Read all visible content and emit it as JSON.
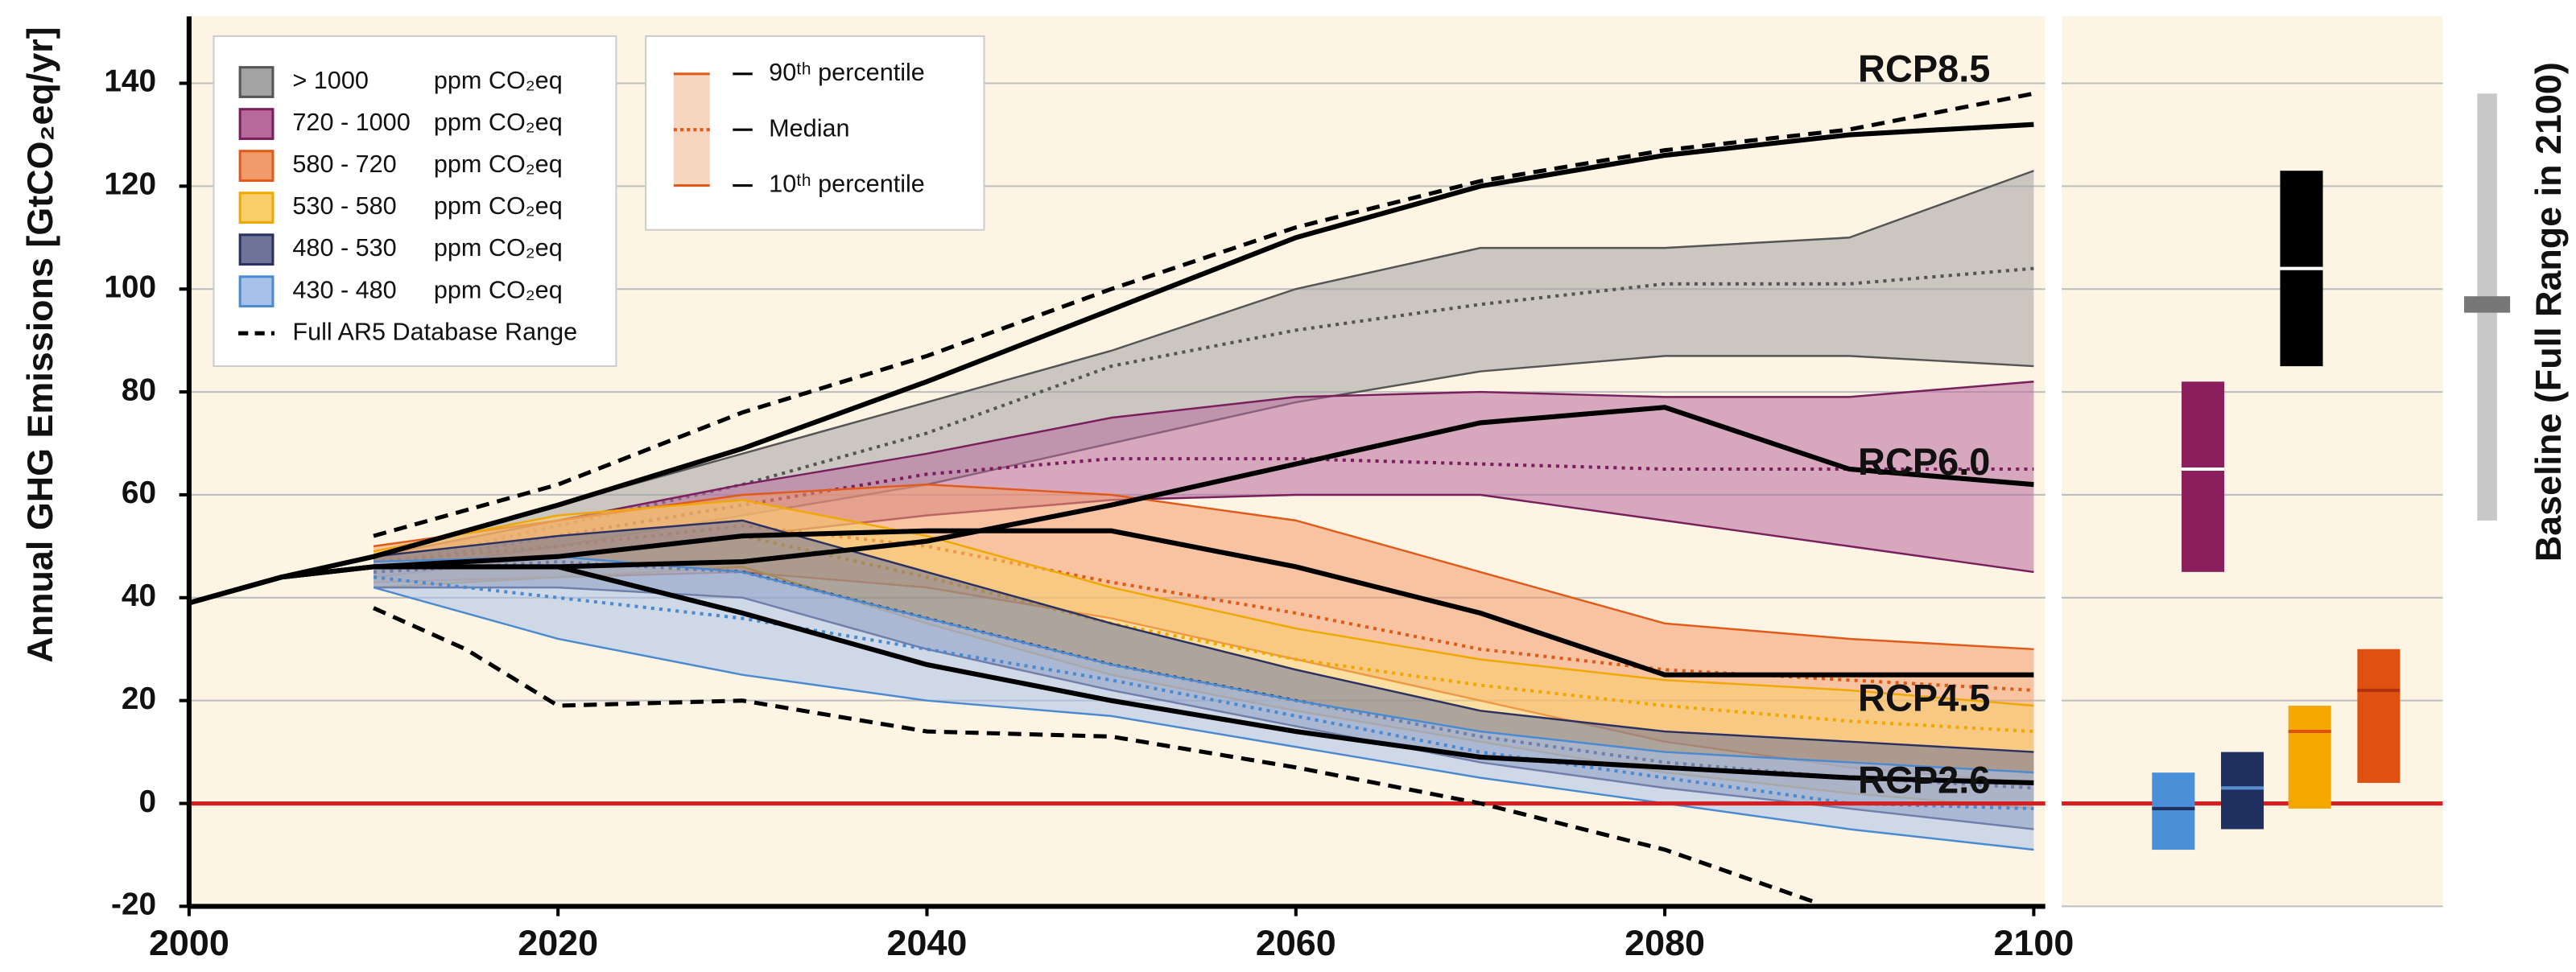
{
  "chart_data": {
    "type": "band",
    "y_label": "Annual GHG Emissions [GtCO₂eq/yr]",
    "xlim": [
      2000,
      2100
    ],
    "xticks": [
      2000,
      2020,
      2040,
      2060,
      2080,
      2100
    ],
    "ylim": [
      -20,
      153
    ],
    "yticks": [
      -20,
      0,
      20,
      40,
      60,
      80,
      100,
      120,
      140
    ],
    "grid": true,
    "zero_line": 0,
    "legend_unit": "ppm CO₂eq",
    "x": [
      2010,
      2020,
      2030,
      2040,
      2050,
      2060,
      2070,
      2080,
      2090,
      2100
    ],
    "series": [
      {
        "name": "> 1000",
        "color": "#a3a3a3",
        "edge": "#555555",
        "bar_color": "#000000",
        "p90": [
          48,
          58,
          68,
          78,
          88,
          100,
          108,
          108,
          110,
          123
        ],
        "median": [
          46,
          54,
          62,
          72,
          85,
          92,
          97,
          101,
          101,
          104
        ],
        "p10": [
          45,
          50,
          56,
          62,
          70,
          78,
          84,
          87,
          87,
          85
        ]
      },
      {
        "name": "720 - 1000",
        "color": "#b8699c",
        "edge": "#7a1f5e",
        "bar_color": "#8b1f5e",
        "p90": [
          48,
          55,
          62,
          68,
          75,
          79,
          80,
          79,
          79,
          82
        ],
        "median": [
          46,
          52,
          58,
          64,
          67,
          67,
          66,
          65,
          65,
          65
        ],
        "p10": [
          44,
          48,
          52,
          56,
          59,
          60,
          60,
          55,
          50,
          45
        ]
      },
      {
        "name": "580 - 720",
        "color": "#f29a6a",
        "edge": "#e05a1a",
        "bar_color": "#e05010",
        "p90": [
          50,
          55,
          60,
          62,
          60,
          55,
          45,
          35,
          32,
          30
        ],
        "median": [
          47,
          50,
          54,
          50,
          43,
          37,
          30,
          26,
          24,
          22
        ],
        "p10": [
          43,
          44,
          45,
          42,
          36,
          28,
          20,
          12,
          7,
          4
        ]
      },
      {
        "name": "530 - 580",
        "color": "#f9cd6a",
        "edge": "#f0a800",
        "bar_color": "#f5a800",
        "p90": [
          49,
          56,
          59,
          52,
          42,
          34,
          28,
          24,
          22,
          19
        ],
        "median": [
          45,
          48,
          52,
          44,
          35,
          28,
          23,
          19,
          16,
          14
        ],
        "p10": [
          42,
          44,
          46,
          35,
          25,
          18,
          12,
          6,
          2,
          -1
        ]
      },
      {
        "name": "480 - 530",
        "color": "#6e7399",
        "edge": "#2a3060",
        "bar_color": "#1f3060",
        "p90": [
          48,
          52,
          55,
          45,
          35,
          26,
          18,
          14,
          12,
          10
        ],
        "median": [
          45,
          47,
          45,
          36,
          27,
          20,
          13,
          8,
          5,
          3
        ],
        "p10": [
          42,
          42,
          40,
          30,
          22,
          15,
          8,
          3,
          -1,
          -5
        ]
      },
      {
        "name": "430 - 480",
        "color": "#a9c1e9",
        "edge": "#4a8ad0",
        "bar_color": "#4a90d9",
        "p90": [
          47,
          48,
          45,
          36,
          27,
          20,
          14,
          10,
          8,
          6
        ],
        "median": [
          44,
          40,
          36,
          30,
          24,
          17,
          10,
          5,
          0,
          -1
        ],
        "p10": [
          42,
          32,
          25,
          20,
          17,
          11,
          5,
          0,
          -5,
          -9
        ]
      }
    ],
    "percentile_labels": {
      "p90": "90ᵗʰ percentile",
      "median": "Median",
      "p10": "10ᵗʰ percentile"
    },
    "rcp": {
      "x": [
        2000,
        2005,
        2010,
        2020,
        2030,
        2040,
        2050,
        2060,
        2070,
        2080,
        2090,
        2100
      ],
      "series": [
        {
          "name": "RCP8.5",
          "values": [
            39,
            44,
            48,
            58,
            69,
            82,
            96,
            110,
            120,
            126,
            130,
            132
          ]
        },
        {
          "name": "RCP6.0",
          "values": [
            39,
            44,
            46,
            46,
            47,
            51,
            58,
            66,
            74,
            77,
            65,
            62
          ]
        },
        {
          "name": "RCP4.5",
          "values": [
            39,
            44,
            46,
            48,
            52,
            53,
            53,
            46,
            37,
            25,
            25,
            25
          ]
        },
        {
          "name": "RCP2.6",
          "values": [
            39,
            44,
            46,
            46,
            37,
            27,
            20,
            14,
            9,
            7,
            5,
            4
          ]
        }
      ]
    },
    "database_range": {
      "name": "Full AR5 Database Range",
      "upper_x": [
        2010,
        2020,
        2030,
        2040,
        2050,
        2060,
        2070,
        2080,
        2090,
        2100
      ],
      "upper": [
        52,
        62,
        76,
        87,
        100,
        112,
        121,
        127,
        131,
        138
      ],
      "lower_x": [
        2010,
        2015,
        2020,
        2030,
        2040,
        2050,
        2060,
        2070,
        2080,
        2088
      ],
      "lower": [
        38,
        30,
        19,
        20,
        14,
        13,
        7,
        0,
        -9,
        -19
      ]
    },
    "baseline": {
      "label": "Baseline (Full Range in 2100)",
      "low": 55,
      "high": 138,
      "median": 97
    }
  }
}
